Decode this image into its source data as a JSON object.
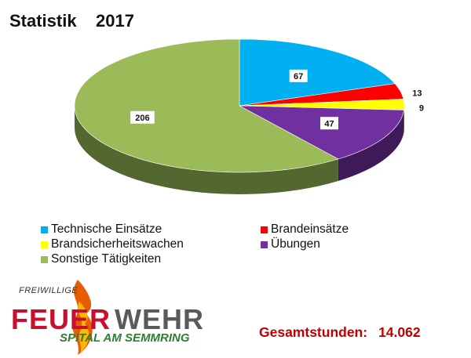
{
  "header": {
    "title": "Statistik",
    "year": "2017"
  },
  "chart_data": {
    "type": "pie",
    "categories": [
      "Technische Einsätze",
      "Brandeinsätze",
      "Brandsicherheitswachen",
      "Übungen",
      "Sonstige Tätigkeiten"
    ],
    "values": [
      67,
      13,
      9,
      47,
      206
    ],
    "colors": [
      "#00b0f0",
      "#ff0000",
      "#ffff00",
      "#7030a0",
      "#9bbb59"
    ],
    "style": "3d-pie",
    "legend_position": "bottom"
  },
  "footer": {
    "total_label": "Gesamtstunden:",
    "total_value": "14.062",
    "total_color": "#c00000"
  },
  "logo": {
    "top_text": "FREIWILLIGE",
    "word1": "FEUER",
    "word2": "WEHR",
    "subtitle": "SPITAL AM SEMMRING"
  }
}
